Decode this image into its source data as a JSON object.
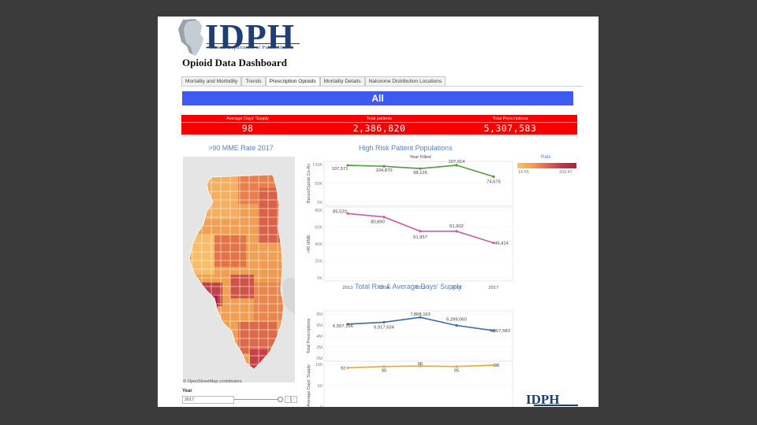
{
  "header": {
    "logo_text": "IDPH",
    "logo_subtitle": "Illinois Department of Public Health",
    "dashboard_title": "Opioid Data Dashboard"
  },
  "tabs": [
    {
      "label": "Mortality and Morbidity",
      "active": false
    },
    {
      "label": "Trends",
      "active": false
    },
    {
      "label": "Prescription Opioids",
      "active": true
    },
    {
      "label": "Mortality Details",
      "active": false
    },
    {
      "label": "Naloxone Distribution Locations",
      "active": false
    }
  ],
  "filter_banner": "All",
  "kpis": [
    {
      "label": "Average Days' Supply",
      "value": "98"
    },
    {
      "label": "Total patients",
      "value": "2,386,820"
    },
    {
      "label": "Total Prescriptions",
      "value": "5,307,583"
    }
  ],
  "map": {
    "title": ">90 MME  Rate 2017",
    "attribution": "© OpenStreetMap contributors",
    "year_label": "Year",
    "year_value": "2017",
    "legend_title": "Rate",
    "legend_min": "14.65",
    "legend_max": "103.47",
    "colors": {
      "low": "#f8c568",
      "mid": "#e1674c",
      "high": "#a82244"
    }
  },
  "chart_data": [
    {
      "type": "line",
      "title": "High Risk Patient Populations",
      "subtitle": "Year Filled",
      "categories": [
        "2013",
        "2014",
        "2015",
        "2016",
        "2017"
      ],
      "series": [
        {
          "name": "Benzo/Opioid Co-Rx",
          "values": [
            107571,
            104870,
            98126,
            107914,
            74675
          ],
          "labels": [
            "107,571",
            "104,870",
            "98,126",
            "107,914",
            "74,675"
          ],
          "color": "#4f9a3b",
          "ylabel": "Benzo/Opioid Co-Rx",
          "ticks": [
            "100K",
            "50K",
            "0K"
          ],
          "ylim": [
            0,
            110000
          ]
        },
        {
          "name": ">90 MME",
          "values": [
            85520,
            80890,
            61957,
            61902,
            46414
          ],
          "labels": [
            "85,520",
            "80,890",
            "61,957",
            "61,902",
            "46,414"
          ],
          "color": "#d5599a",
          "ylabel": ">90 MME",
          "ticks": [
            "80K",
            "60K",
            "40K",
            "20K",
            "0K"
          ],
          "ylim": [
            0,
            90000
          ]
        }
      ]
    },
    {
      "type": "line",
      "title": "Total Rxs & Average Days' Supply",
      "categories": [
        "2013",
        "2014",
        "2015",
        "2016",
        "2017"
      ],
      "series": [
        {
          "name": "Total Prescriptions",
          "values": [
            6557156,
            6917634,
            7868163,
            6299060,
            5307583
          ],
          "labels": [
            "6,557,156",
            "6,917,634",
            "7,868,163",
            "6,299,060",
            "5,307,583"
          ],
          "color": "#3e6ba8",
          "ylabel": "Total Prescriptions",
          "ticks": [
            "8M",
            "6M",
            "4M",
            "2M",
            "0M"
          ],
          "ylim": [
            0,
            8500000
          ]
        },
        {
          "name": "Average Days' Supply",
          "values": [
            92,
            95,
            96,
            95,
            98
          ],
          "labels": [
            "92",
            "95",
            "96",
            "95",
            "98"
          ],
          "color": "#f0a537",
          "ylabel": "Average Days' Supply",
          "ticks": [
            "100",
            "50",
            "0"
          ],
          "ylim": [
            0,
            100
          ]
        }
      ]
    }
  ]
}
